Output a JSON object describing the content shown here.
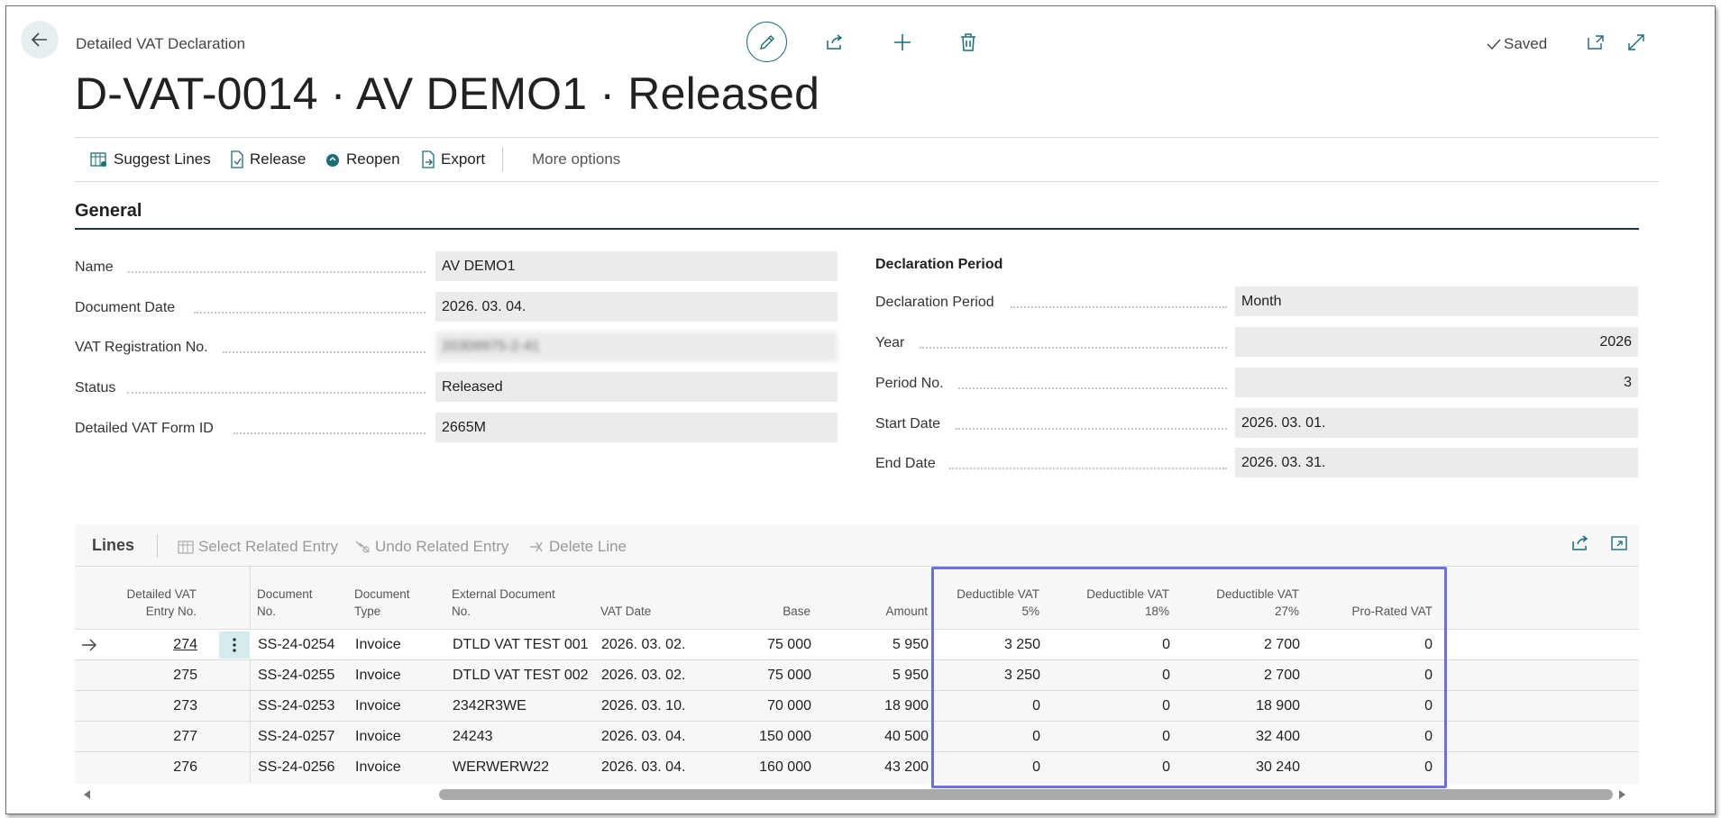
{
  "header": {
    "breadcrumb": "Detailed VAT Declaration",
    "title": "D-VAT-0014 · AV DEMO1 · Released",
    "saved_label": "Saved"
  },
  "actions": {
    "suggest_lines": "Suggest Lines",
    "release": "Release",
    "reopen": "Reopen",
    "export": "Export",
    "more_options": "More options"
  },
  "general": {
    "section_title": "General",
    "left_fields": [
      {
        "label": "Name",
        "value": "AV DEMO1"
      },
      {
        "label": "Document Date",
        "value": "2026. 03. 04."
      },
      {
        "label": "VAT Registration No.",
        "value": "20309975-2-41"
      },
      {
        "label": "Status",
        "value": "Released"
      },
      {
        "label": "Detailed VAT Form ID",
        "value": "2665M"
      }
    ],
    "declaration_title": "Declaration Period",
    "right_fields": [
      {
        "label": "Declaration Period",
        "value": "Month"
      },
      {
        "label": "Year",
        "value": "2026"
      },
      {
        "label": "Period No.",
        "value": "3"
      },
      {
        "label": "Start Date",
        "value": "2026. 03. 01."
      },
      {
        "label": "End Date",
        "value": "2026. 03. 31."
      }
    ]
  },
  "lines": {
    "title": "Lines",
    "select_related_entry": "Select Related Entry",
    "undo_related_entry": "Undo Related Entry",
    "delete_line": "Delete Line",
    "columns": {
      "entry_no_1": "Detailed VAT",
      "entry_no_2": "Entry No.",
      "doc_no_1": "Document",
      "doc_no_2": "No.",
      "doc_type_1": "Document",
      "doc_type_2": "Type",
      "ext_doc_1": "External Document",
      "ext_doc_2": "No.",
      "vat_date": "VAT Date",
      "base": "Base",
      "amount": "Amount",
      "ded5_1": "Deductible VAT",
      "ded5_2": "5%",
      "ded18_1": "Deductible VAT",
      "ded18_2": "18%",
      "ded27_1": "Deductible VAT",
      "ded27_2": "27%",
      "prorated": "Pro-Rated VAT"
    },
    "rows": [
      {
        "entry": "274",
        "doc_no": "SS-24-0254",
        "doc_type": "Invoice",
        "ext_doc": "DTLD VAT TEST 001",
        "vat_date": "2026. 03. 02.",
        "base": "75 000",
        "amount": "5 950",
        "ded5": "3 250",
        "ded18": "0",
        "ded27": "2 700",
        "prorated": "0"
      },
      {
        "entry": "275",
        "doc_no": "SS-24-0255",
        "doc_type": "Invoice",
        "ext_doc": "DTLD VAT TEST 002",
        "vat_date": "2026. 03. 02.",
        "base": "75 000",
        "amount": "5 950",
        "ded5": "3 250",
        "ded18": "0",
        "ded27": "2 700",
        "prorated": "0"
      },
      {
        "entry": "273",
        "doc_no": "SS-24-0253",
        "doc_type": "Invoice",
        "ext_doc": "2342R3WE",
        "vat_date": "2026. 03. 10.",
        "base": "70 000",
        "amount": "18 900",
        "ded5": "0",
        "ded18": "0",
        "ded27": "18 900",
        "prorated": "0"
      },
      {
        "entry": "277",
        "doc_no": "SS-24-0257",
        "doc_type": "Invoice",
        "ext_doc": "24243",
        "vat_date": "2026. 03. 04.",
        "base": "150 000",
        "amount": "40 500",
        "ded5": "0",
        "ded18": "0",
        "ded27": "32 400",
        "prorated": "0"
      },
      {
        "entry": "276",
        "doc_no": "SS-24-0256",
        "doc_type": "Invoice",
        "ext_doc": "WERWERW22",
        "vat_date": "2026. 03. 04.",
        "base": "160 000",
        "amount": "43 200",
        "ded5": "0",
        "ded18": "0",
        "ded27": "30 240",
        "prorated": "0"
      }
    ]
  },
  "colors": {
    "accent": "#1a6d77",
    "highlight": "#6f6ee0"
  }
}
